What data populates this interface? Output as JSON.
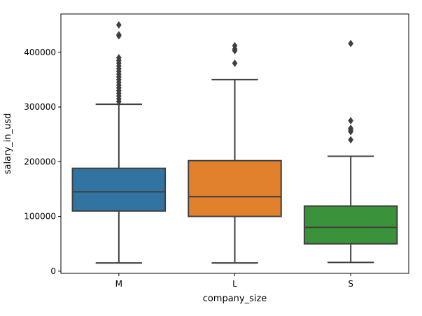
{
  "chart_data": {
    "type": "box",
    "title": "",
    "xlabel": "company_size",
    "ylabel": "salary_in_usd",
    "ylim": [
      -4000,
      470000
    ],
    "yticks": [
      0,
      100000,
      200000,
      300000,
      400000
    ],
    "ytick_labels": [
      "0",
      "100000",
      "200000",
      "300000",
      "400000"
    ],
    "grid": false,
    "categories": [
      "M",
      "L",
      "S"
    ],
    "series": [
      {
        "category": "M",
        "color": "#3274a1",
        "q1": 110000,
        "median": 145000,
        "q3": 188000,
        "whisker_low": 15000,
        "whisker_high": 305000,
        "outliers": [
          310000,
          315000,
          320000,
          325000,
          330000,
          335000,
          340000,
          345000,
          350000,
          355000,
          360000,
          365000,
          370000,
          375000,
          380000,
          385000,
          390000,
          430000,
          432000,
          450000
        ]
      },
      {
        "category": "L",
        "color": "#e1812c",
        "q1": 100000,
        "median": 136000,
        "q3": 202000,
        "whisker_low": 15000,
        "whisker_high": 350000,
        "outliers": [
          380000,
          403000,
          406000,
          412000
        ]
      },
      {
        "category": "S",
        "color": "#3a923a",
        "q1": 50000,
        "median": 80000,
        "q3": 119000,
        "whisker_low": 16000,
        "whisker_high": 210000,
        "outliers": [
          240000,
          255000,
          258000,
          261000,
          275000,
          416000
        ]
      }
    ]
  }
}
